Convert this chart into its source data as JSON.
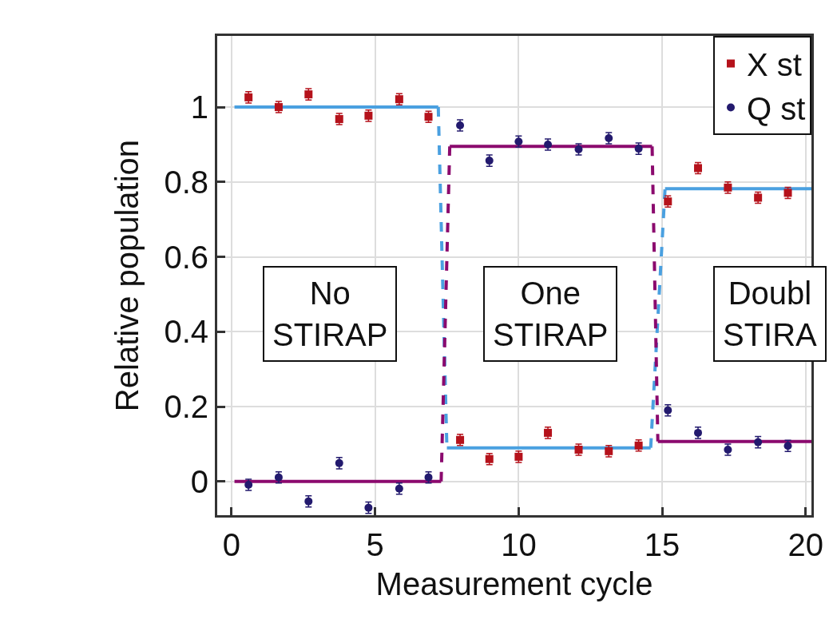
{
  "chart_data": {
    "type": "scatter",
    "xlabel": "Measurement cycle",
    "ylabel": "Relative population",
    "xlim": [
      -0.5,
      20.2
    ],
    "ylim": [
      -0.09,
      1.19
    ],
    "xticks": [
      0,
      5,
      10,
      15,
      20
    ],
    "yticks": [
      0,
      0.2,
      0.4,
      0.6,
      0.8,
      1
    ],
    "grid": true,
    "legend": "top right",
    "series": [
      {
        "name": "X st",
        "color": "#b5121b",
        "marker": "square",
        "x": [
          0.59,
          1.64,
          2.68,
          3.75,
          4.77,
          5.84,
          6.86,
          7.96,
          8.98,
          10.0,
          11.02,
          12.09,
          13.14,
          14.18,
          15.2,
          16.25,
          17.29,
          18.34,
          19.38
        ],
        "values": [
          1.026,
          1.0,
          1.034,
          0.968,
          0.977,
          1.021,
          0.974,
          0.111,
          0.06,
          0.066,
          0.13,
          0.085,
          0.081,
          0.096,
          0.748,
          0.837,
          0.785,
          0.758,
          0.771
        ],
        "errors": [
          0.015,
          0.015,
          0.015,
          0.015,
          0.015,
          0.015,
          0.015,
          0.015,
          0.015,
          0.015,
          0.015,
          0.015,
          0.015,
          0.015,
          0.015,
          0.015,
          0.015,
          0.015,
          0.015
        ]
      },
      {
        "name": "Q st",
        "color": "#231a6e",
        "marker": "circle",
        "x": [
          0.59,
          1.64,
          2.68,
          3.75,
          4.77,
          5.84,
          6.86,
          7.96,
          8.98,
          10.0,
          11.02,
          12.09,
          13.14,
          14.18,
          15.2,
          16.25,
          17.29,
          18.34,
          19.38
        ],
        "values": [
          -0.009,
          0.011,
          -0.053,
          0.049,
          -0.07,
          -0.019,
          0.011,
          0.951,
          0.857,
          0.908,
          0.9,
          0.887,
          0.917,
          0.889,
          0.19,
          0.13,
          0.085,
          0.105,
          0.095
        ],
        "errors": [
          0.015,
          0.015,
          0.015,
          0.015,
          0.015,
          0.015,
          0.015,
          0.015,
          0.015,
          0.015,
          0.015,
          0.015,
          0.015,
          0.015,
          0.015,
          0.015,
          0.015,
          0.015,
          0.015
        ]
      },
      {
        "type": "line",
        "color": "#4aa0e0",
        "line_style": "solid",
        "marker": "none",
        "x": [
          0.1,
          7.2
        ],
        "values": [
          1,
          1
        ]
      },
      {
        "type": "line",
        "color": "#4aa0e0",
        "line_style": "solid",
        "marker": "none",
        "x": [
          7.5,
          14.6
        ],
        "values": [
          0.09,
          0.09
        ]
      },
      {
        "type": "line",
        "color": "#4aa0e0",
        "line_style": "solid",
        "marker": "none",
        "x": [
          15.1,
          20.2
        ],
        "values": [
          0.782,
          0.782
        ]
      },
      {
        "type": "line",
        "color": "#4aa0e0",
        "line_style": "dashed",
        "marker": "none",
        "x": [
          7.2,
          7.5
        ],
        "values": [
          1,
          0.09
        ]
      },
      {
        "type": "line",
        "color": "#4aa0e0",
        "line_style": "dashed",
        "marker": "none",
        "x": [
          14.6,
          15.1
        ],
        "values": [
          0.09,
          0.782
        ]
      },
      {
        "type": "line",
        "color": "#8b0a6e",
        "line_style": "solid",
        "marker": "none",
        "x": [
          0.1,
          7.3
        ],
        "values": [
          0,
          0
        ]
      },
      {
        "type": "line",
        "color": "#8b0a6e",
        "line_style": "solid",
        "marker": "none",
        "x": [
          7.6,
          14.65
        ],
        "values": [
          0.895,
          0.895
        ]
      },
      {
        "type": "line",
        "color": "#8b0a6e",
        "line_style": "solid",
        "marker": "none",
        "x": [
          14.85,
          20.2
        ],
        "values": [
          0.107,
          0.107
        ]
      },
      {
        "type": "line",
        "color": "#8b0a6e",
        "line_style": "dashed",
        "marker": "none",
        "x": [
          7.3,
          7.6
        ],
        "values": [
          0,
          0.895
        ]
      },
      {
        "type": "line",
        "color": "#8b0a6e",
        "line_style": "dashed",
        "marker": "none",
        "x": [
          14.65,
          14.85
        ],
        "values": [
          0.895,
          0.107
        ]
      }
    ],
    "annotations": [
      "No\nSTIRAP",
      "One\nSTIRAP",
      "Doubl\nSTIRA"
    ]
  }
}
